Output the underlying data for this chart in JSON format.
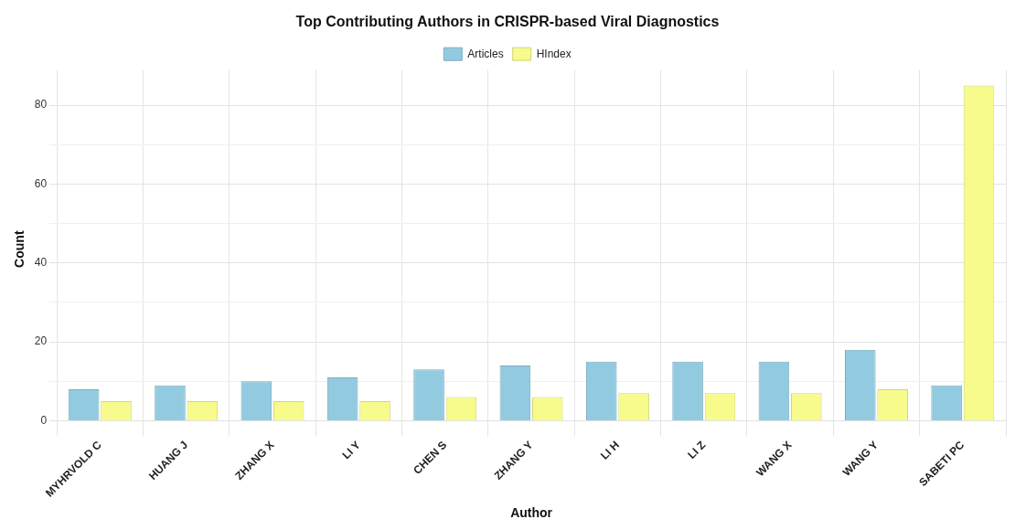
{
  "chart_data": {
    "type": "bar",
    "title": "Top Contributing Authors in CRISPR-based Viral Diagnostics",
    "xlabel": "Author",
    "ylabel": "Count",
    "categories": [
      "MYHRVOLD C",
      "HUANG J",
      "ZHANG X",
      "LI Y",
      "CHEN S",
      "ZHANG Y",
      "LI H",
      "LI Z",
      "WANG X",
      "WANG Y",
      "SABETI PC"
    ],
    "series": [
      {
        "name": "Articles",
        "color": "#92cbe0",
        "values": [
          8,
          9,
          10,
          11,
          13,
          14,
          15,
          15,
          15,
          18,
          9
        ]
      },
      {
        "name": "HIndex",
        "color": "#f7fb8c",
        "values": [
          5,
          5,
          5,
          5,
          6,
          6,
          7,
          7,
          7,
          8,
          85
        ]
      }
    ],
    "ylim": [
      -2,
      89
    ],
    "yticks": [
      0,
      {
        "value": 10,
        "label": null
      },
      20,
      {
        "value": 30,
        "label": null
      },
      40,
      {
        "value": 50,
        "label": null
      },
      60,
      {
        "value": 70,
        "label": null
      },
      80
    ],
    "grid": true,
    "legend": "top"
  }
}
